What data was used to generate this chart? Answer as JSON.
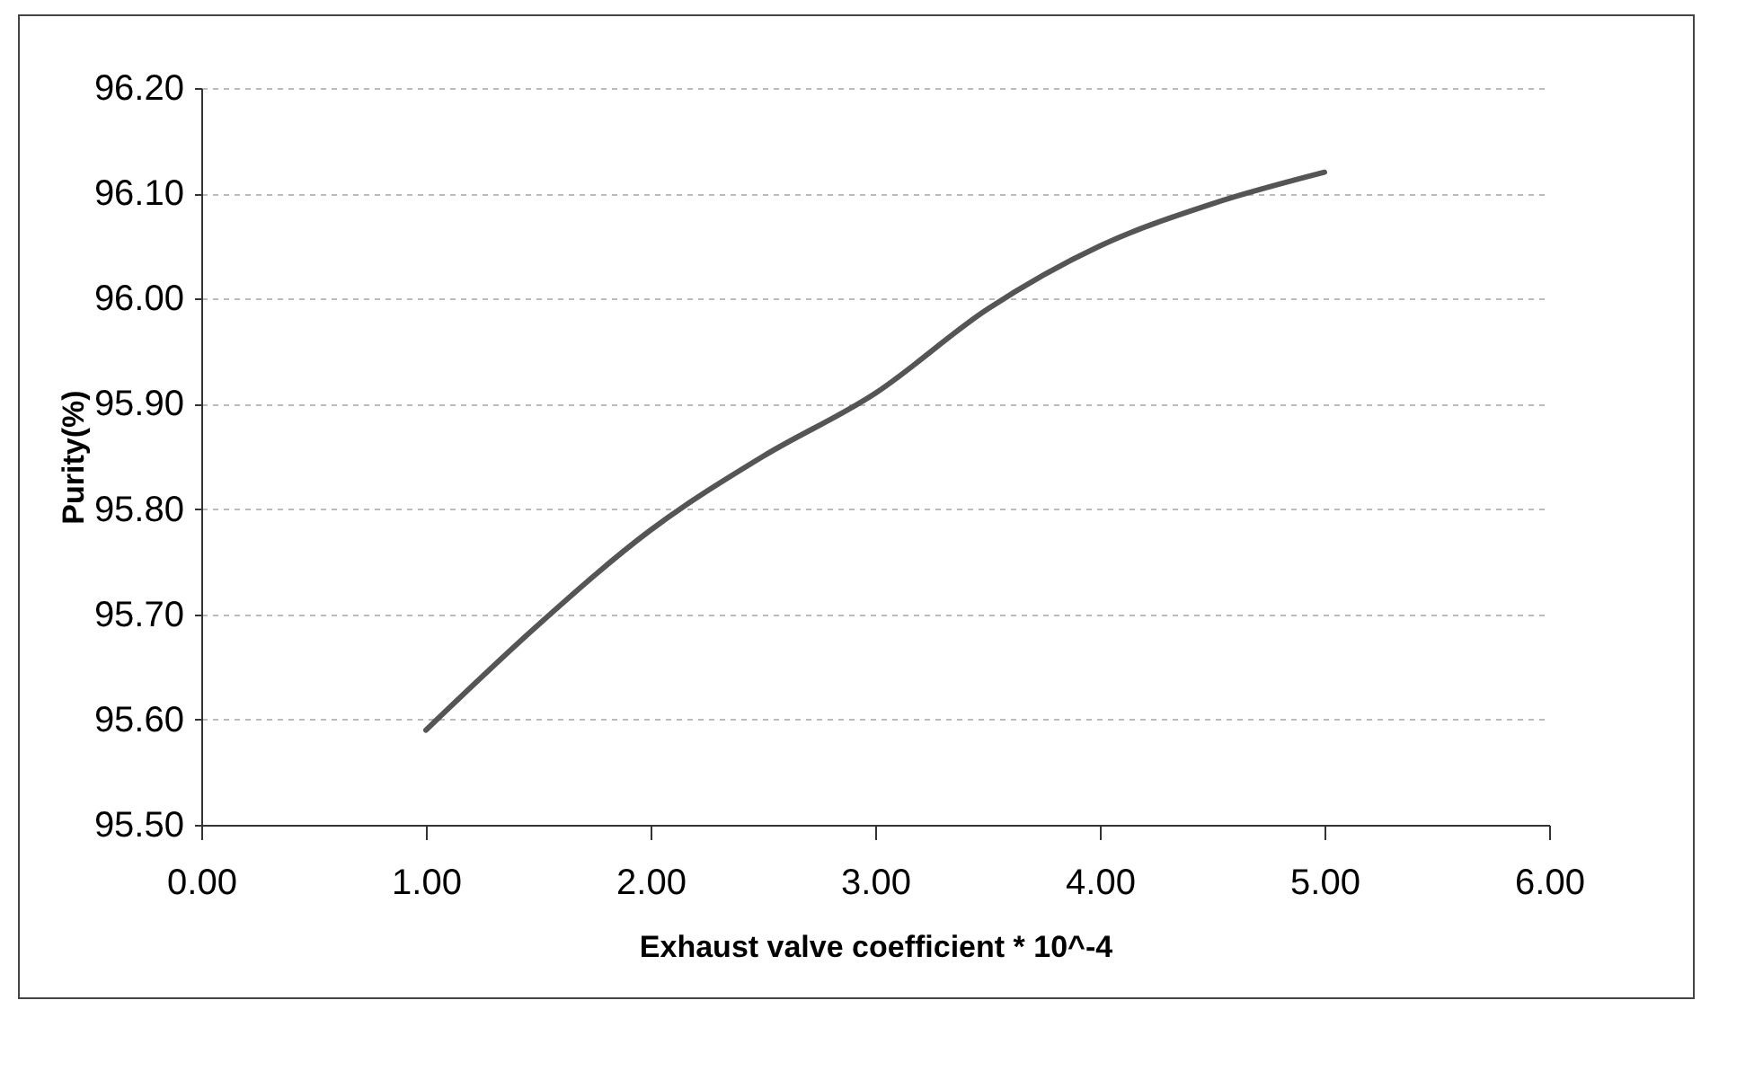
{
  "chart_data": {
    "type": "line",
    "xlabel": "Exhaust valve coefficient * 10^-4",
    "ylabel": "Purity(%)",
    "x": [
      1,
      1.5,
      2,
      2.5,
      3,
      3.5,
      4,
      4.5,
      5
    ],
    "series": [
      {
        "color": "#555555",
        "values": [
          95.59,
          95.69,
          95.78,
          95.85,
          95.91,
          95.99,
          96.05,
          96.09,
          96.12
        ]
      }
    ],
    "xlim": [
      0,
      6
    ],
    "xticks": [
      {
        "value": 0,
        "label": "0.00"
      },
      {
        "value": 1,
        "label": "1.00"
      },
      {
        "value": 2,
        "label": "2.00"
      },
      {
        "value": 3,
        "label": "3.00"
      },
      {
        "value": 4,
        "label": "4.00"
      },
      {
        "value": 5,
        "label": "5.00"
      },
      {
        "value": 6,
        "label": "6.00"
      }
    ],
    "ylim": [
      95.5,
      96.2
    ],
    "yticks": [
      {
        "value": 95.5,
        "label": "95.50"
      },
      {
        "value": 95.6,
        "label": "95.60"
      },
      {
        "value": 95.7,
        "label": "95.70"
      },
      {
        "value": 95.8,
        "label": "95.80"
      },
      {
        "value": 95.9,
        "label": "95.90"
      },
      {
        "value": 96.0,
        "label": "96.00"
      },
      {
        "value": 96.1,
        "label": "96.10"
      },
      {
        "value": 96.2,
        "label": "96.20"
      }
    ],
    "grid": "y",
    "marker": "none",
    "line_style": "solid"
  }
}
